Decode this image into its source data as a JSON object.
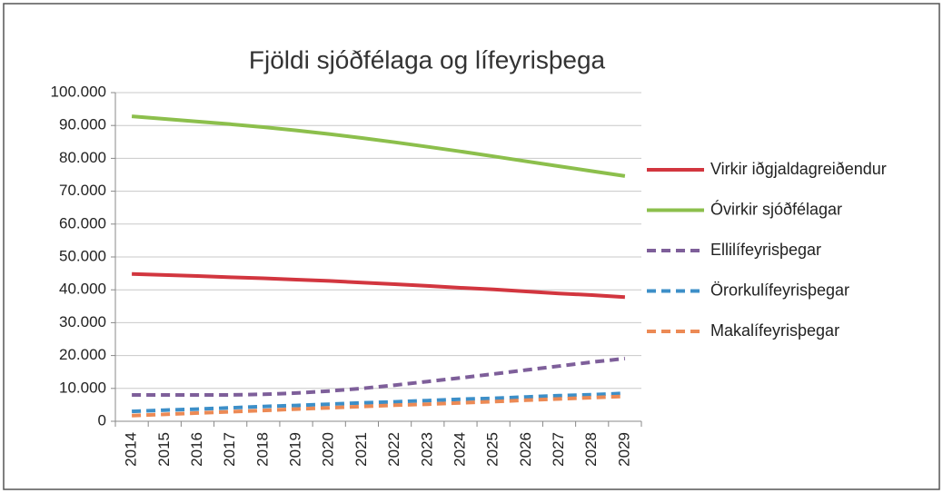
{
  "chart_data": {
    "type": "line",
    "title": "Fjöldi sjóðfélaga og lífeyrisþega",
    "categories": [
      "2014",
      "2015",
      "2016",
      "2017",
      "2018",
      "2019",
      "2020",
      "2021",
      "2022",
      "2023",
      "2024",
      "2025",
      "2026",
      "2027",
      "2028",
      "2029"
    ],
    "series": [
      {
        "name": "Virkir iðgjaldagreiðendur",
        "color": "#d2363f",
        "dashed": false,
        "values": [
          44800,
          44500,
          44200,
          43800,
          43500,
          43100,
          42700,
          42200,
          41700,
          41200,
          40600,
          40100,
          39500,
          38900,
          38400,
          37800
        ]
      },
      {
        "name": "Óvirkir sjóðfélagar",
        "color": "#8cbf4c",
        "dashed": false,
        "values": [
          92800,
          92000,
          91200,
          90400,
          89500,
          88500,
          87400,
          86200,
          84900,
          83500,
          82100,
          80600,
          79100,
          77600,
          76100,
          74600
        ]
      },
      {
        "name": "Ellilífeyrisþegar",
        "color": "#7e5f9a",
        "dashed": true,
        "values": [
          8000,
          8000,
          8000,
          8000,
          8200,
          8600,
          9200,
          10000,
          11000,
          12100,
          13200,
          14400,
          15600,
          16800,
          18000,
          19100
        ]
      },
      {
        "name": "Örorkulífeyrisþegar",
        "color": "#3d8fc8",
        "dashed": true,
        "values": [
          3000,
          3400,
          3700,
          4100,
          4500,
          4800,
          5200,
          5600,
          5900,
          6300,
          6700,
          7000,
          7400,
          7800,
          8100,
          8500
        ]
      },
      {
        "name": "Makalífeyrisþegar",
        "color": "#ec8a55",
        "dashed": true,
        "values": [
          1700,
          2100,
          2500,
          2900,
          3300,
          3700,
          4100,
          4500,
          4900,
          5200,
          5600,
          6000,
          6400,
          6800,
          7200,
          7600
        ]
      }
    ],
    "ylim": [
      0,
      100000
    ],
    "yticks": [
      0,
      {
        "value": 10000,
        "label": "10.000"
      },
      {
        "value": 20000,
        "label": "20.000"
      },
      {
        "value": 30000,
        "label": "30.000"
      },
      {
        "value": 40000,
        "label": "40.000"
      },
      {
        "value": 50000,
        "label": "50.000"
      },
      {
        "value": 60000,
        "label": "60.000"
      },
      {
        "value": 70000,
        "label": "70.000"
      },
      {
        "value": 80000,
        "label": "80.000"
      },
      {
        "value": 90000,
        "label": "90.000"
      },
      {
        "value": 100000,
        "label": "100.000"
      }
    ],
    "grid": true,
    "legend": "right"
  }
}
